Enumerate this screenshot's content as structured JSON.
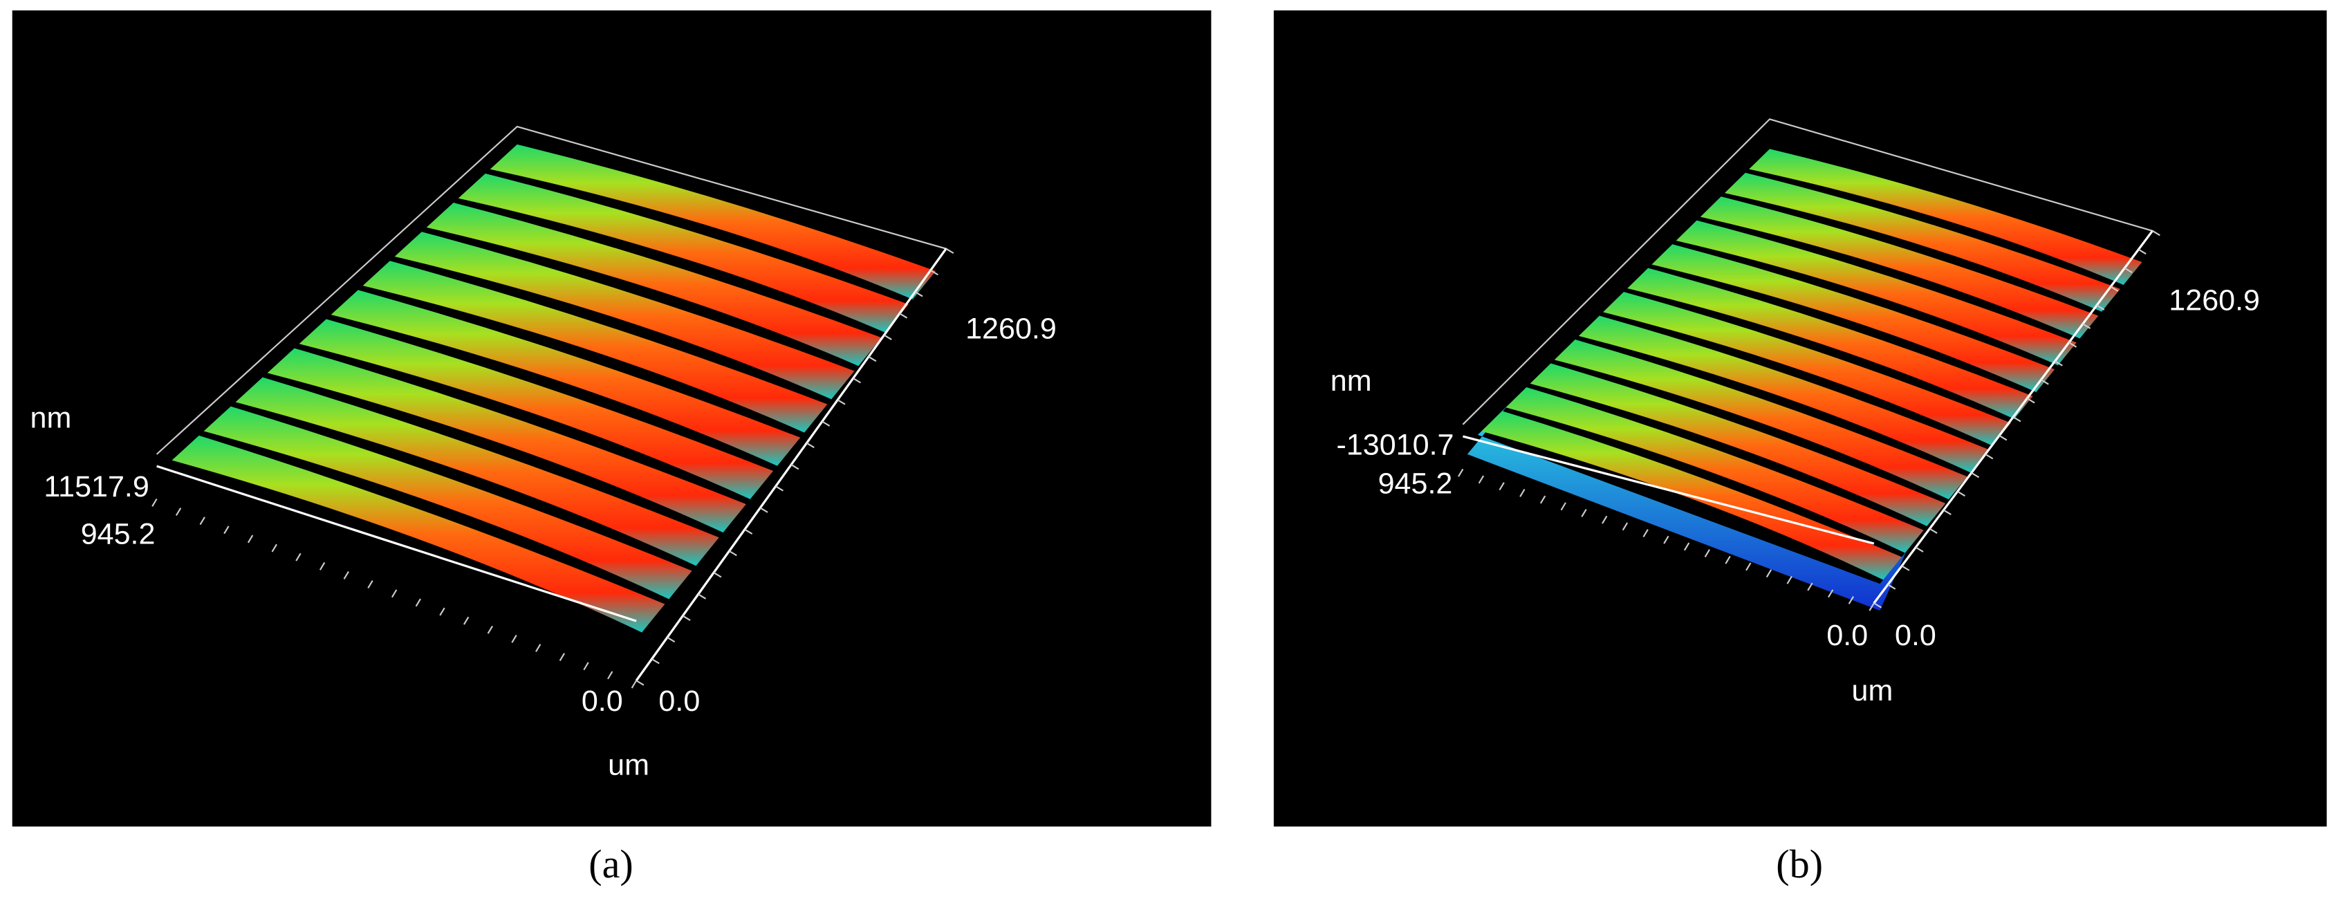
{
  "panels": [
    {
      "z_unit": "nm",
      "z_top": "11517.9",
      "y_max": "945.2",
      "x_max": "1260.9",
      "x_origin": "0.0",
      "y_origin": "0.0",
      "xy_unit": "um",
      "caption": "(a)"
    },
    {
      "z_unit": "nm",
      "z_top": "-13010.7",
      "y_max": "945.2",
      "x_max": "1260.9",
      "x_origin": "0.0",
      "y_origin": "0.0",
      "xy_unit": "um",
      "caption": "(b)"
    }
  ]
}
